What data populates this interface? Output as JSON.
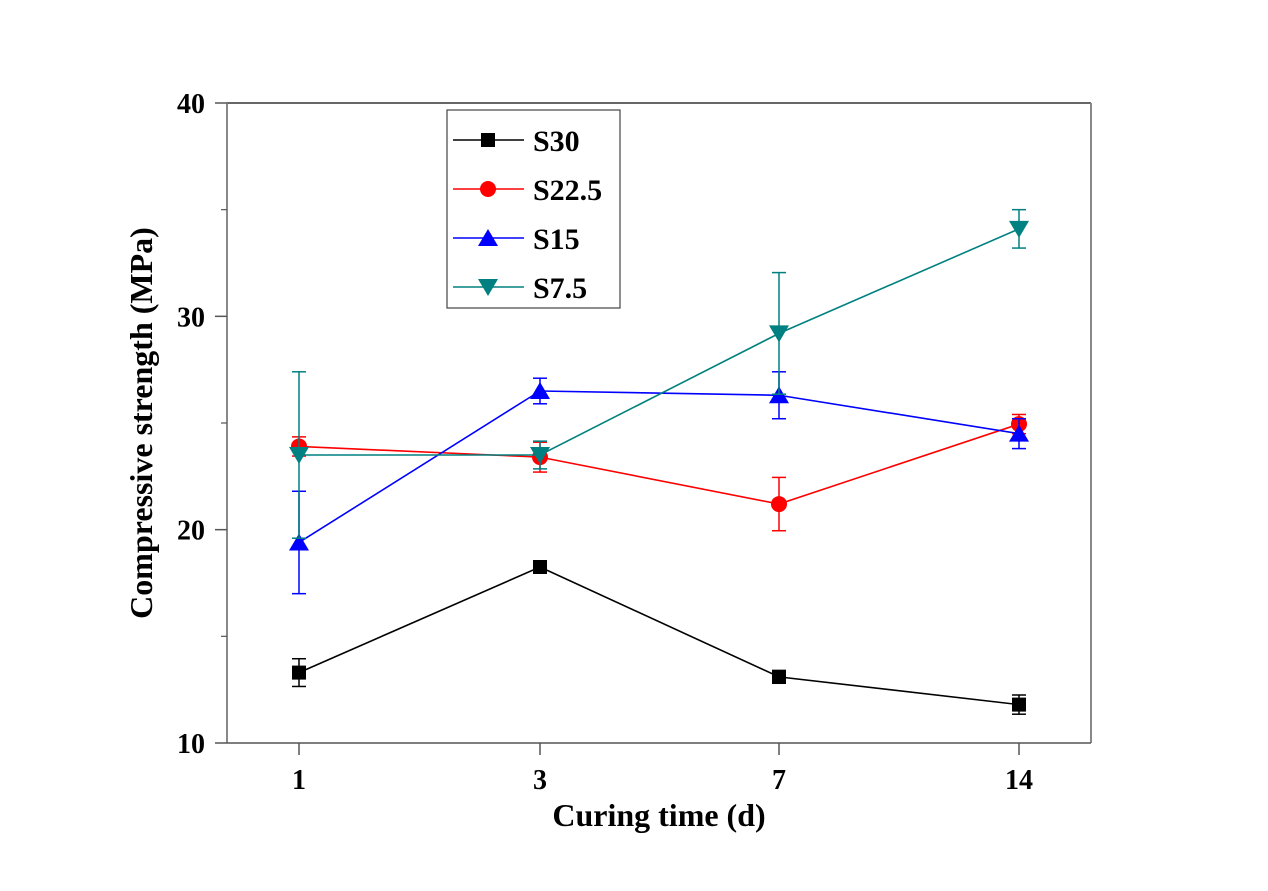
{
  "chart_data": {
    "type": "line",
    "title": "",
    "xlabel": "Curing time (d)",
    "ylabel": "Compressive strength (MPa)",
    "categories": [
      "1",
      "3",
      "7",
      "14"
    ],
    "ylim": [
      10,
      40
    ],
    "yticks": [
      10,
      20,
      30,
      40
    ],
    "yminor_ticks": [
      15,
      25,
      35
    ],
    "grid": false,
    "legend_position": "top-left-center",
    "series": [
      {
        "name": "S30",
        "color": "#000000",
        "marker": "square",
        "values": [
          13.3,
          18.25,
          13.1,
          11.8
        ],
        "error": [
          0.65,
          0.2,
          0.3,
          0.45
        ]
      },
      {
        "name": "S22.5",
        "color": "#ff0000",
        "marker": "circle",
        "values": [
          23.9,
          23.4,
          21.2,
          24.95
        ],
        "error": [
          0.45,
          0.7,
          1.25,
          0.45
        ]
      },
      {
        "name": "S15",
        "color": "#0000ff",
        "marker": "triangle-up",
        "values": [
          19.4,
          26.5,
          26.3,
          24.5
        ],
        "error": [
          2.4,
          0.6,
          1.1,
          0.7
        ]
      },
      {
        "name": "S7.5",
        "color": "#008080",
        "marker": "triangle-down",
        "values": [
          23.5,
          23.5,
          29.2,
          34.1
        ],
        "error": [
          3.9,
          0.65,
          2.85,
          0.9
        ]
      }
    ]
  }
}
